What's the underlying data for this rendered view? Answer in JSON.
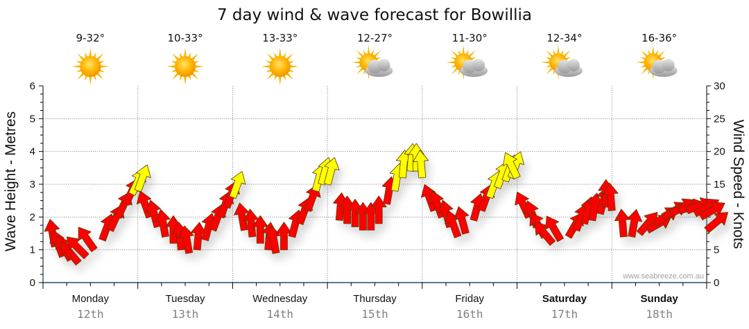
{
  "title": "7 day wind & wave forecast for Bowillia",
  "watermark": "www.seabreeze.com.au",
  "colors": {
    "light_wind": "#ff0000",
    "strong_wind": "#ffff00",
    "grid": "#a0a0a0",
    "axis": "#1f4e6e"
  },
  "days": [
    {
      "name": "Monday",
      "date": "12th",
      "temp": "9-32°",
      "icon": "sun-icon",
      "bold": false
    },
    {
      "name": "Tuesday",
      "date": "13th",
      "temp": "10-33°",
      "icon": "sun-icon",
      "bold": false
    },
    {
      "name": "Wednesday",
      "date": "14th",
      "temp": "13-33°",
      "icon": "sun-icon",
      "bold": false
    },
    {
      "name": "Thursday",
      "date": "15th",
      "temp": "12-27°",
      "icon": "partly-cloudy-icon",
      "bold": false
    },
    {
      "name": "Friday",
      "date": "16th",
      "temp": "11-30°",
      "icon": "partly-cloudy-icon",
      "bold": false
    },
    {
      "name": "Saturday",
      "date": "17th",
      "temp": "12-34°",
      "icon": "partly-cloudy-icon",
      "bold": true
    },
    {
      "name": "Sunday",
      "date": "18th",
      "temp": "16-36°",
      "icon": "partly-cloudy-icon",
      "bold": true
    }
  ],
  "chart_data": {
    "type": "line",
    "title": "7 day wind & wave forecast for Bowillia",
    "ylabel_left": "Wave Height - Metres",
    "ylabel_right": "Wind Speed - Knots",
    "ylim_left": [
      0,
      6
    ],
    "ylim_right": [
      0,
      30
    ],
    "yticks_left": [
      "0",
      "1",
      "2",
      "3",
      "4",
      "5",
      "6"
    ],
    "yticks_right": [
      "0",
      "5",
      "10",
      "15",
      "20",
      "25",
      "30"
    ],
    "grid": true,
    "x_categories": [
      "Monday 12th",
      "Tuesday 13th",
      "Wednesday 14th",
      "Thursday 15th",
      "Friday 16th",
      "Saturday 17th",
      "Sunday 18th"
    ],
    "wind_threshold_knots": 12.5,
    "series": [
      {
        "name": "Wind",
        "units": "knots",
        "hours_from_start": [
          3,
          5,
          7,
          9,
          11,
          13,
          15,
          17,
          19,
          21,
          22.5,
          24,
          27,
          29,
          31,
          33,
          35,
          37,
          39,
          41,
          43,
          45,
          46.5,
          48,
          51,
          53,
          55,
          57,
          59,
          61,
          63,
          65,
          67,
          69,
          70.5,
          72,
          75,
          77,
          79,
          81,
          83,
          85,
          87,
          89,
          91,
          93,
          94.5,
          96,
          99,
          101,
          103,
          105,
          107,
          109,
          111,
          113,
          115,
          117,
          118.5,
          120,
          123,
          125,
          127,
          129,
          131,
          133,
          135,
          137,
          139,
          141,
          142.5,
          144,
          147,
          149,
          151,
          153,
          155,
          157,
          159,
          161,
          163,
          165,
          166.5,
          168
        ],
        "speed": [
          5.5,
          4,
          3.5,
          3,
          4,
          5,
          6.5,
          8,
          10,
          12,
          13.5,
          14,
          10,
          8.5,
          7,
          6,
          5,
          4.5,
          5,
          6.5,
          8,
          10,
          11.5,
          13,
          8,
          7,
          6,
          5,
          4.5,
          5,
          7,
          9,
          11,
          14,
          15,
          15,
          9.5,
          9,
          8.5,
          8,
          8,
          9,
          12,
          14,
          16,
          17,
          17,
          16,
          11,
          10,
          8.5,
          7,
          7.5,
          9.5,
          11,
          13,
          14.5,
          15.5,
          16,
          16,
          10,
          8.5,
          7,
          6,
          6.5,
          7,
          8,
          9,
          9.5,
          10.5,
          11.5,
          11,
          7,
          7,
          7.5,
          8,
          9,
          10,
          10.5,
          11,
          11,
          10.5,
          10,
          8
        ],
        "direction_deg": [
          350,
          340,
          330,
          320,
          315,
          325,
          20,
          25,
          25,
          25,
          25,
          20,
          340,
          345,
          350,
          0,
          355,
          350,
          5,
          15,
          20,
          20,
          20,
          20,
          350,
          355,
          0,
          5,
          350,
          0,
          15,
          20,
          20,
          15,
          15,
          15,
          5,
          0,
          0,
          0,
          0,
          0,
          10,
          10,
          5,
          5,
          0,
          355,
          340,
          340,
          345,
          340,
          345,
          15,
          20,
          20,
          20,
          20,
          20,
          335,
          335,
          340,
          330,
          320,
          330,
          30,
          20,
          15,
          10,
          15,
          0,
          355,
          355,
          10,
          40,
          60,
          55,
          60,
          60,
          75,
          70,
          60,
          60,
          50
        ]
      }
    ]
  }
}
